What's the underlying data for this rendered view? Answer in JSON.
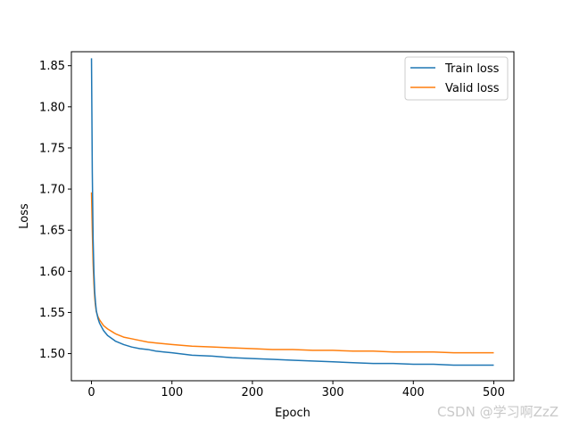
{
  "chart_data": {
    "type": "line",
    "title": "",
    "xlabel": "Epoch",
    "ylabel": "Loss",
    "xlim": [
      -25,
      525
    ],
    "ylim": [
      1.467,
      1.867
    ],
    "xticks": [
      0,
      100,
      200,
      300,
      400,
      500
    ],
    "yticks": [
      1.5,
      1.55,
      1.6,
      1.65,
      1.7,
      1.75,
      1.8,
      1.85
    ],
    "ytick_labels": [
      "1.50",
      "1.55",
      "1.60",
      "1.65",
      "1.70",
      "1.75",
      "1.80",
      "1.85"
    ],
    "grid": false,
    "legend_position": "top-right",
    "series": [
      {
        "name": "Train loss",
        "color": "#1f77b4",
        "x": [
          0,
          1,
          2,
          3,
          4,
          5,
          6,
          8,
          10,
          15,
          20,
          30,
          40,
          50,
          60,
          70,
          80,
          90,
          100,
          125,
          150,
          175,
          200,
          225,
          250,
          275,
          300,
          325,
          350,
          375,
          400,
          425,
          450,
          475,
          500
        ],
        "y": [
          1.859,
          1.72,
          1.64,
          1.6,
          1.575,
          1.562,
          1.552,
          1.543,
          1.537,
          1.528,
          1.522,
          1.515,
          1.511,
          1.508,
          1.506,
          1.505,
          1.503,
          1.502,
          1.501,
          1.498,
          1.497,
          1.495,
          1.494,
          1.493,
          1.492,
          1.491,
          1.49,
          1.489,
          1.488,
          1.488,
          1.487,
          1.487,
          1.486,
          1.486,
          1.486
        ]
      },
      {
        "name": "Valid loss",
        "color": "#ff7f0e",
        "x": [
          0,
          1,
          2,
          3,
          4,
          5,
          6,
          8,
          10,
          15,
          20,
          30,
          40,
          50,
          60,
          70,
          80,
          90,
          100,
          125,
          150,
          175,
          200,
          225,
          250,
          275,
          300,
          325,
          350,
          375,
          400,
          425,
          450,
          475,
          500
        ],
        "y": [
          1.696,
          1.65,
          1.61,
          1.585,
          1.568,
          1.558,
          1.551,
          1.545,
          1.541,
          1.534,
          1.53,
          1.524,
          1.52,
          1.518,
          1.516,
          1.514,
          1.513,
          1.512,
          1.511,
          1.509,
          1.508,
          1.507,
          1.506,
          1.505,
          1.505,
          1.504,
          1.504,
          1.503,
          1.503,
          1.502,
          1.502,
          1.502,
          1.501,
          1.501,
          1.501
        ]
      }
    ]
  },
  "watermark": "CSDN @学习啊ZzZ"
}
